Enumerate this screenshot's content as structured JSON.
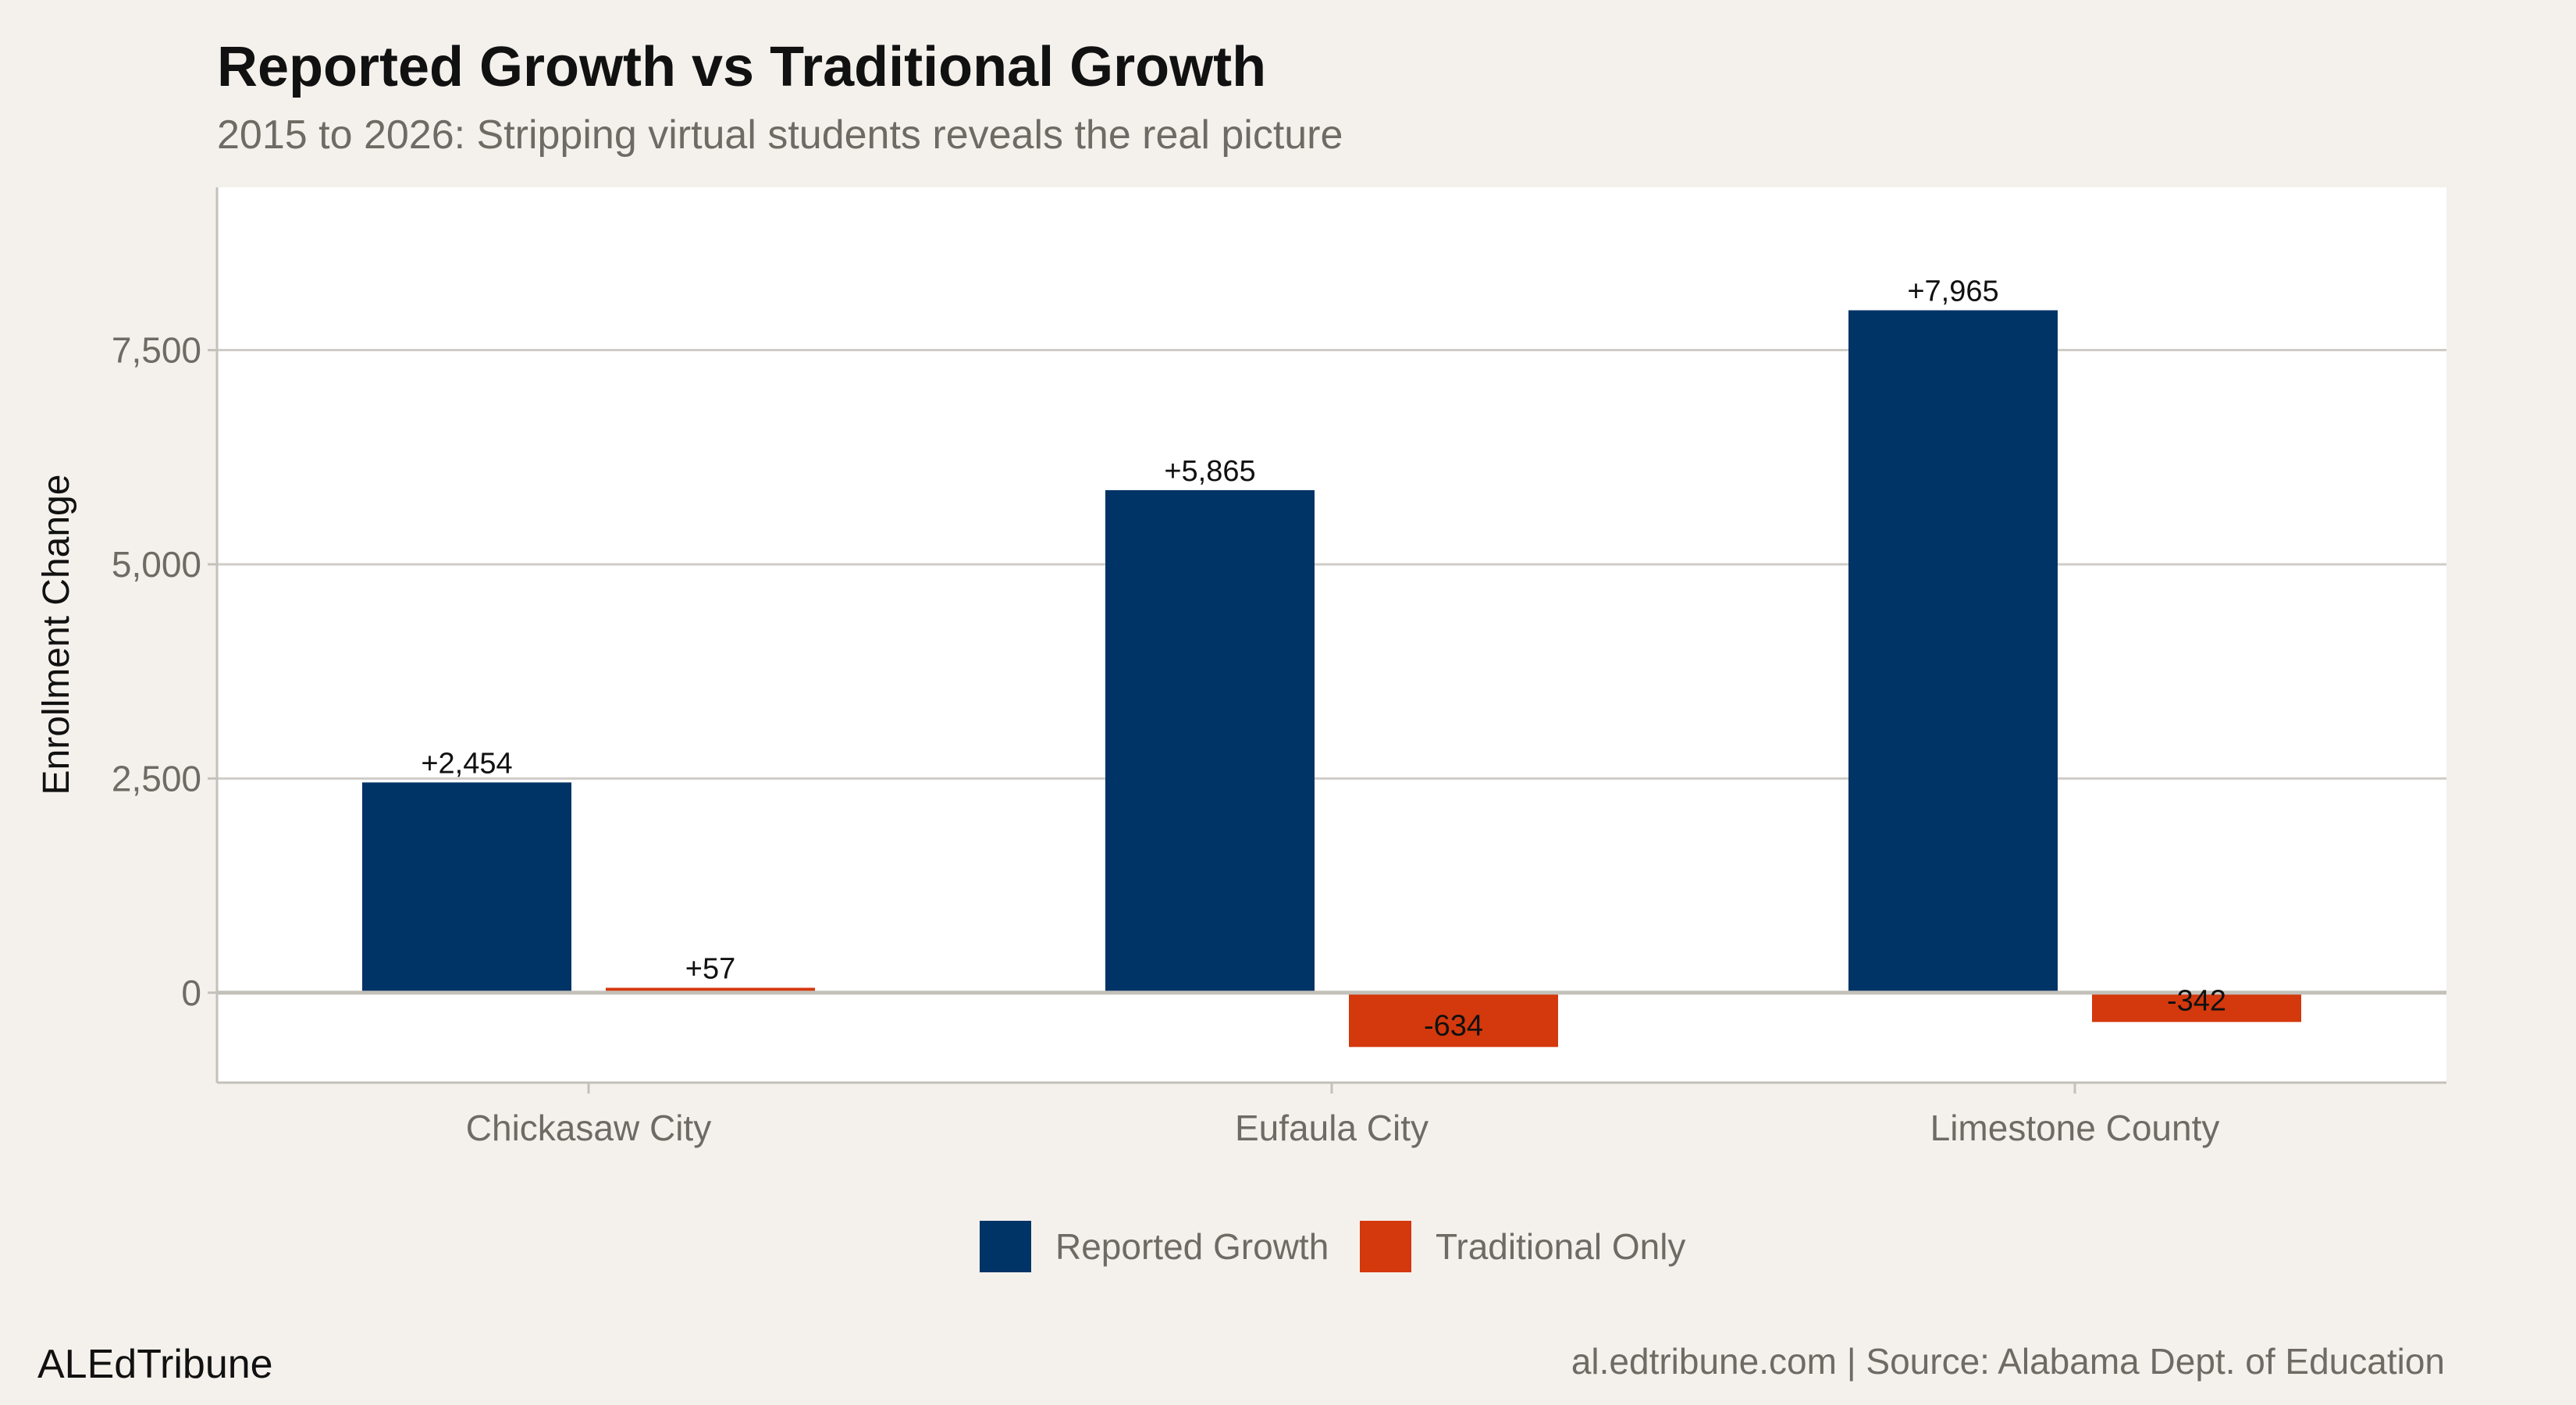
{
  "chart_data": {
    "type": "bar",
    "title": "Reported Growth vs Traditional Growth",
    "subtitle": "2015 to 2026: Stripping virtual students reveals the real picture",
    "xlabel": "",
    "ylabel": "Enrollment Change",
    "categories": [
      "Chickasaw City",
      "Eufaula City",
      "Limestone County"
    ],
    "series": [
      {
        "name": "Reported Growth",
        "color": "#003366",
        "values": [
          2454,
          5865,
          7965
        ],
        "labels": [
          "+2,454",
          "+5,865",
          "+7,965"
        ]
      },
      {
        "name": "Traditional Only",
        "color": "#d4380d",
        "values": [
          57,
          -634,
          -342
        ],
        "labels": [
          "+57",
          "-634",
          "-342"
        ]
      }
    ],
    "ylim": [
      -1050,
      9400
    ],
    "yticks": [
      0,
      2500,
      5000,
      7500
    ],
    "ytick_labels": [
      "0",
      "2,500",
      "5,000",
      "7,500"
    ],
    "grid": true,
    "legend_position": "bottom"
  },
  "footer": {
    "brand": "ALEdTribune",
    "source": "al.edtribune.com | Source: Alabama Dept. of Education"
  }
}
